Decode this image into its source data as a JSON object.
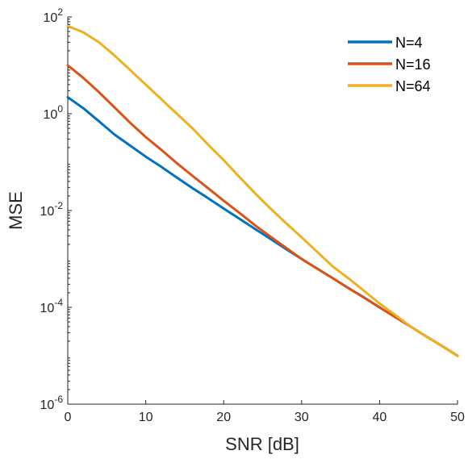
{
  "chart_data": {
    "type": "line",
    "title": "",
    "xlabel": "SNR [dB]",
    "ylabel": "MSE",
    "xlim": [
      0,
      50
    ],
    "ylim": [
      1e-06,
      100
    ],
    "yscale": "log",
    "grid": false,
    "legend_position": "top-right",
    "x_ticks": [
      0,
      10,
      20,
      30,
      40,
      50
    ],
    "x_tick_labels": [
      "0",
      "10",
      "20",
      "30",
      "40",
      "50"
    ],
    "y_ticks": [
      1e-06,
      0.0001,
      0.01,
      1,
      100
    ],
    "y_tick_labels": [
      {
        "base": "10",
        "exp": "-6"
      },
      {
        "base": "10",
        "exp": "-4"
      },
      {
        "base": "10",
        "exp": "-2"
      },
      {
        "base": "10",
        "exp": "0"
      },
      {
        "base": "10",
        "exp": "2"
      }
    ],
    "x": [
      0,
      2,
      4,
      6,
      8,
      10,
      12,
      14,
      16,
      18,
      20,
      22,
      24,
      26,
      28,
      30,
      32,
      34,
      36,
      38,
      40,
      42,
      44,
      46,
      48,
      50
    ],
    "series": [
      {
        "name": "N=4",
        "color": "#0072BD",
        "values": [
          2.2,
          1.3,
          0.7,
          0.37,
          0.22,
          0.13,
          0.08,
          0.048,
          0.029,
          0.018,
          0.011,
          0.0068,
          0.0042,
          0.0026,
          0.0016,
          0.001,
          0.00063,
          0.0004,
          0.00025,
          0.00016,
          0.0001,
          6.3e-05,
          4e-05,
          2.5e-05,
          1.6e-05,
          1e-05
        ]
      },
      {
        "name": "N=16",
        "color": "#D95319",
        "values": [
          10,
          5.5,
          2.8,
          1.35,
          0.65,
          0.33,
          0.18,
          0.095,
          0.052,
          0.029,
          0.016,
          0.009,
          0.005,
          0.0029,
          0.0017,
          0.001,
          0.00063,
          0.0004,
          0.00025,
          0.00016,
          0.0001,
          6.3e-05,
          4e-05,
          2.5e-05,
          1.6e-05,
          1e-05
        ]
      },
      {
        "name": "N=64",
        "color": "#EDB120",
        "values": [
          65,
          48,
          30,
          16,
          8,
          4,
          2,
          1,
          0.5,
          0.23,
          0.11,
          0.05,
          0.023,
          0.011,
          0.0055,
          0.0028,
          0.0014,
          0.0007,
          0.0004,
          0.00022,
          0.00012,
          7e-05,
          4e-05,
          2.5e-05,
          1.6e-05,
          1e-05
        ]
      }
    ]
  }
}
